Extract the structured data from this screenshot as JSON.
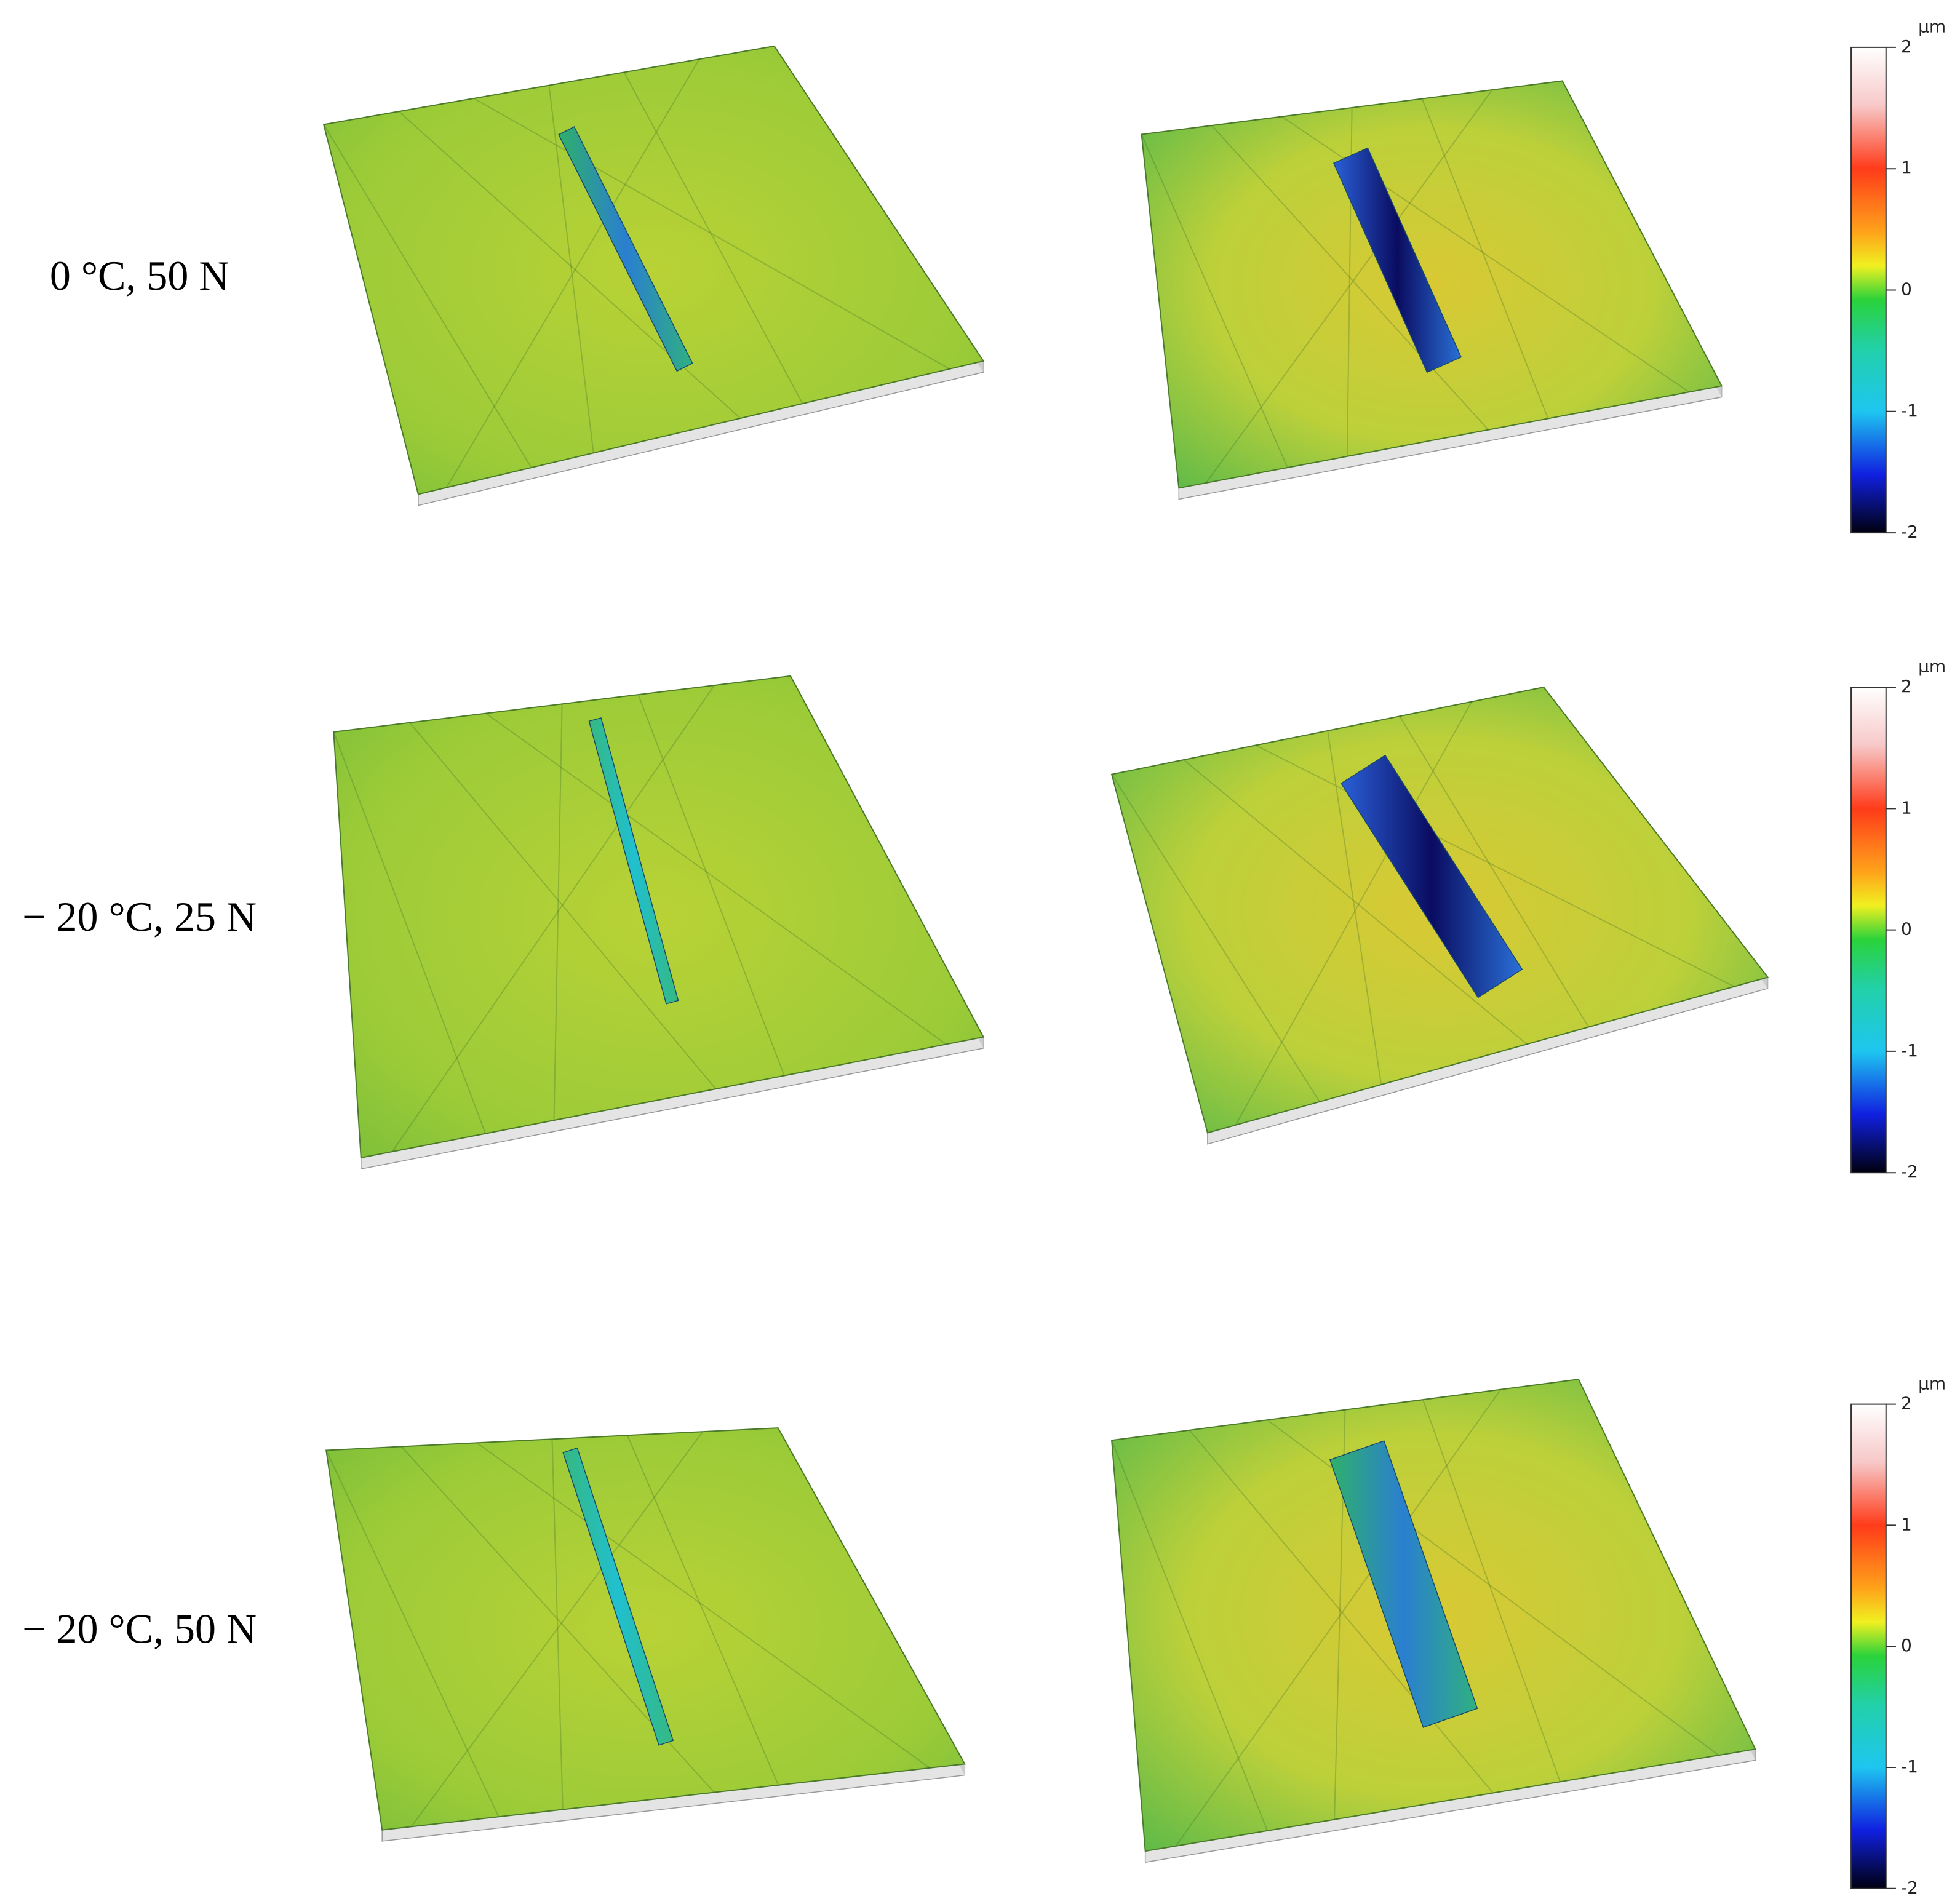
{
  "rows": [
    {
      "label": "0 °C, 50 N",
      "colorbar": {
        "unit": "µm",
        "ticks": [
          2,
          1,
          0,
          -1,
          -2
        ]
      }
    },
    {
      "label": "− 20 °C, 25 N",
      "colorbar": {
        "unit": "µm",
        "ticks": [
          2,
          1,
          0,
          -1,
          -2
        ]
      }
    },
    {
      "label": "− 20 °C, 50 N",
      "colorbar": {
        "unit": "µm",
        "ticks": [
          2,
          1,
          0,
          -1,
          -2
        ]
      }
    }
  ]
}
